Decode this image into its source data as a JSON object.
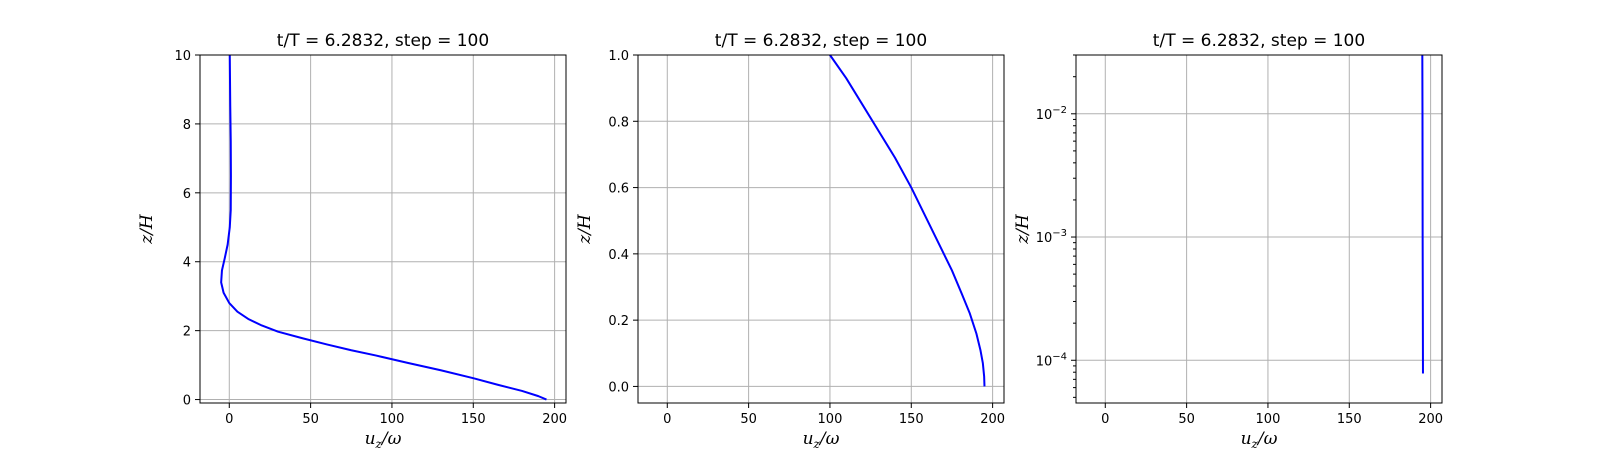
{
  "chart_data": [
    {
      "type": "line",
      "title": "t/T = 6.2832, step = 100",
      "xlabel_base": "u",
      "xlabel_sub": "z",
      "xlabel_rest": "/ω",
      "ylabel": "z/H",
      "xlim": [
        -18,
        207
      ],
      "ylim": [
        -0.1,
        10
      ],
      "yscale": "linear",
      "xticks": [
        0,
        50,
        100,
        150,
        200
      ],
      "yticks": [
        0,
        2,
        4,
        6,
        8,
        10
      ],
      "xtick_labels": [
        "0",
        "50",
        "100",
        "150",
        "200"
      ],
      "ytick_labels": [
        "0",
        "2",
        "4",
        "6",
        "8",
        "10"
      ],
      "grid": true,
      "series": [
        {
          "color": "#0000ff",
          "x": [
            195,
            190,
            180,
            165,
            150,
            130,
            110,
            90,
            75,
            60,
            45,
            30,
            20,
            12,
            5,
            0,
            -3.5,
            -5,
            -4.5,
            -2.8,
            -1,
            0.3,
            0.9,
            1.0,
            0.9,
            0.6,
            0.3
          ],
          "y": [
            0,
            0.1,
            0.25,
            0.43,
            0.62,
            0.85,
            1.06,
            1.28,
            1.43,
            1.6,
            1.78,
            1.97,
            2.15,
            2.33,
            2.55,
            2.8,
            3.1,
            3.4,
            3.75,
            4.1,
            4.5,
            5.0,
            5.5,
            6.5,
            7.5,
            8.5,
            10
          ]
        }
      ]
    },
    {
      "type": "line",
      "title": "t/T = 6.2832, step = 100",
      "xlabel_base": "u",
      "xlabel_sub": "z",
      "xlabel_rest": "/ω",
      "ylabel": "z/H",
      "xlim": [
        -18,
        207
      ],
      "ylim": [
        -0.05,
        1.0
      ],
      "yscale": "linear",
      "xticks": [
        0,
        50,
        100,
        150,
        200
      ],
      "yticks": [
        0,
        0.2,
        0.4,
        0.6,
        0.8,
        1.0
      ],
      "xtick_labels": [
        "0",
        "50",
        "100",
        "150",
        "200"
      ],
      "ytick_labels": [
        "0.0",
        "0.2",
        "0.4",
        "0.6",
        "0.8",
        "1.0"
      ],
      "grid": true,
      "series": [
        {
          "color": "#0000ff",
          "x": [
            195,
            194.8,
            194,
            192.5,
            190,
            186,
            181,
            175,
            168,
            160,
            150,
            140,
            130,
            120,
            110,
            100
          ],
          "y": [
            0,
            0.03,
            0.07,
            0.11,
            0.16,
            0.22,
            0.28,
            0.35,
            0.42,
            0.5,
            0.6,
            0.69,
            0.77,
            0.85,
            0.93,
            1.0
          ]
        }
      ]
    },
    {
      "type": "line",
      "title": "t/T = 6.2832, step = 100",
      "xlabel_base": "u",
      "xlabel_sub": "z",
      "xlabel_rest": "/ω",
      "ylabel": "z/H",
      "xlim": [
        -18,
        207
      ],
      "ylim": [
        4.5e-05,
        0.03
      ],
      "yscale": "log",
      "xticks": [
        0,
        50,
        100,
        150,
        200
      ],
      "yticks": [
        0.0001,
        0.001,
        0.01
      ],
      "xtick_labels": [
        "0",
        "50",
        "100",
        "150",
        "200"
      ],
      "ytick_labels": [
        {
          "base": "10",
          "exp": "−4"
        },
        {
          "base": "10",
          "exp": "−3"
        },
        {
          "base": "10",
          "exp": "−2"
        }
      ],
      "grid": true,
      "series": [
        {
          "color": "#0000ff",
          "x": [
            195.3,
            195.2,
            195.1,
            195.0,
            194.9
          ],
          "y": [
            7.8e-05,
            0.0003,
            0.001,
            0.01,
            0.03
          ]
        }
      ]
    }
  ]
}
